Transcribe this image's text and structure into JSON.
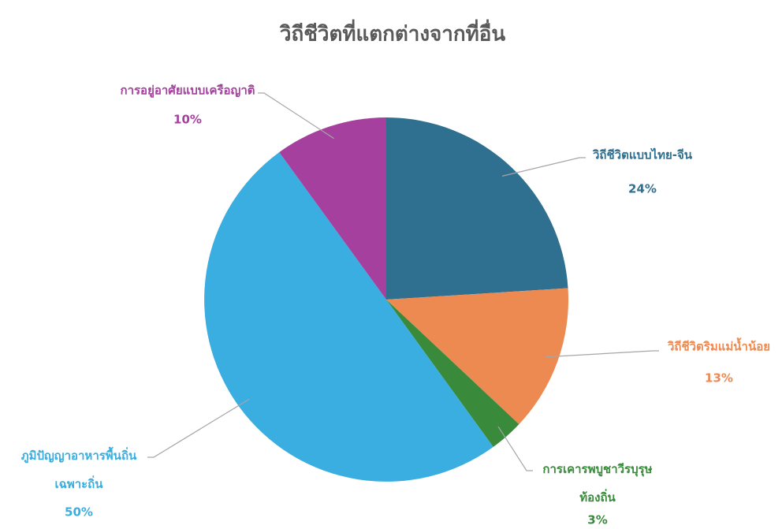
{
  "chart_data": {
    "type": "pie",
    "title": "วิถีชีวิตที่แตกต่างจากที่อื่น",
    "categories": [
      "วิถีชีวิตแบบไทย-จีน",
      "วิถีชีวิตริมแม่น้ำน้อย",
      "การเคารพบูชาวีรบุรุษ\nท้องถิ่น",
      "ภูมิปัญญาอาหารพื้นถิ่น\nเฉพาะถิ่น",
      "การอยู่อาศัยแบบเครือญาติ"
    ],
    "values": [
      24,
      13,
      3,
      50,
      10
    ],
    "value_labels": [
      "24%",
      "13%",
      "3%",
      "50%",
      "10%"
    ],
    "colors": [
      "#2f6f8f",
      "#ec8a52",
      "#3a8a3c",
      "#3aaee0",
      "#a5409e"
    ]
  }
}
